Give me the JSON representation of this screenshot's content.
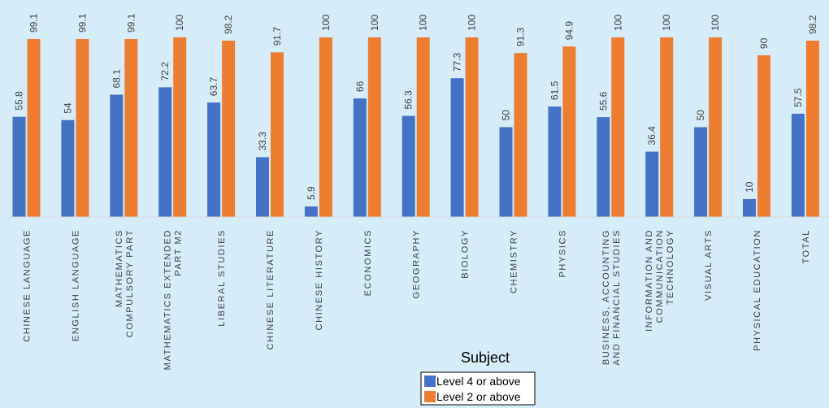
{
  "chart_data": {
    "type": "bar",
    "xlabel": "Subject",
    "ylabel": "",
    "ylim": [
      0,
      100
    ],
    "grid": false,
    "legend_position": "bottom-center",
    "categories": [
      [
        "CHINESE LANGUAGE"
      ],
      [
        "ENGLISH LANGUAGE"
      ],
      [
        "MATHEMATICS",
        "COMPULSORY PART"
      ],
      [
        "MATHEMATICS EXTENDED",
        "PART M2"
      ],
      [
        "LIBERAL STUDIES"
      ],
      [
        "CHINESE LITERATURE"
      ],
      [
        "CHINESE HISTORY"
      ],
      [
        "ECONOMICS"
      ],
      [
        "GEOGRAPHY"
      ],
      [
        "BIOLOGY"
      ],
      [
        "CHEMISTRY"
      ],
      [
        "PHYSICS"
      ],
      [
        "BUSINESS, ACCOUNTING",
        "AND FINANCIAL STUDIES"
      ],
      [
        "INFORMATION AND",
        "COMMUNICATION",
        "TECHNOLOGY"
      ],
      [
        "VISUAL ARTS"
      ],
      [
        "PHYSICAL EDUCATION"
      ],
      [
        "TOTAL"
      ]
    ],
    "series": [
      {
        "name": "Level 4 or above",
        "color": "#4472c4",
        "values": [
          55.8,
          54,
          68.1,
          72.2,
          63.7,
          33.3,
          5.9,
          66,
          56.3,
          77.3,
          50,
          61.5,
          55.6,
          36.4,
          50,
          10,
          57.5
        ]
      },
      {
        "name": "Level 2 or above",
        "color": "#ed7d31",
        "values": [
          99.1,
          99.1,
          99.1,
          100,
          98.2,
          91.7,
          100,
          100,
          100,
          100,
          91.3,
          94.9,
          100,
          100,
          100,
          90,
          98.2
        ]
      }
    ]
  }
}
